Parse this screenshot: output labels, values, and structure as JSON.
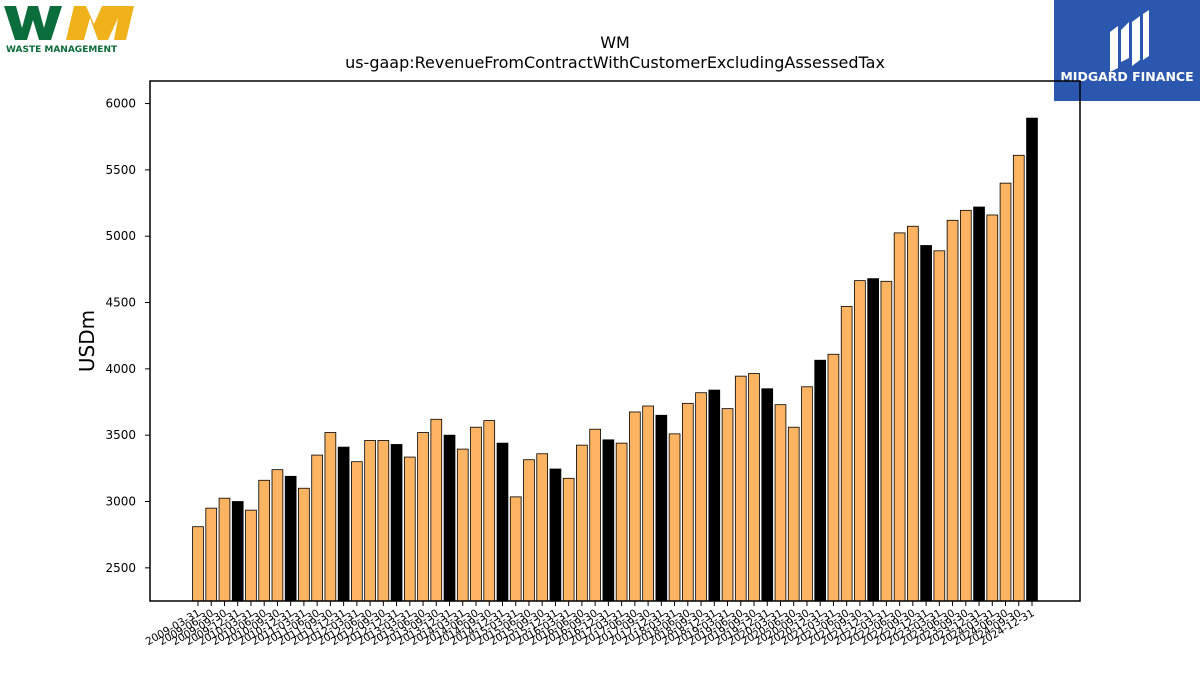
{
  "logos": {
    "left_text": "WASTE MANAGEMENT",
    "right_text": "MIDGARD FINANCE",
    "wm_green": "#0a6d3b",
    "wm_yellow": "#f0b21b",
    "midgard_blue": "#2b58ae"
  },
  "chart_data": {
    "type": "bar",
    "title": "WM",
    "subtitle": "us-gaap:RevenueFromContractWithCustomerExcludingAssessedTax",
    "xlabel": "",
    "ylabel": "USDm",
    "ylim": [
      2250,
      6170
    ],
    "yticks": [
      2500,
      3000,
      3500,
      4000,
      4500,
      5000,
      5500,
      6000
    ],
    "grid": false,
    "legend": "none",
    "colors": {
      "quarter": "#fdb462",
      "q4_highlight": "#000000",
      "edge": "#000000"
    },
    "categories": [
      "2009-03-31",
      "2009-06-30",
      "2009-09-30",
      "2009-12-31",
      "2010-03-31",
      "2010-06-30",
      "2010-09-30",
      "2010-12-31",
      "2011-03-31",
      "2011-06-30",
      "2011-09-30",
      "2011-12-31",
      "2012-03-31",
      "2012-06-30",
      "2012-09-30",
      "2012-12-31",
      "2013-03-31",
      "2013-06-30",
      "2013-09-30",
      "2013-12-31",
      "2014-03-31",
      "2014-06-30",
      "2014-09-30",
      "2014-12-31",
      "2015-03-31",
      "2015-06-30",
      "2015-09-30",
      "2015-12-31",
      "2016-03-31",
      "2016-06-30",
      "2016-09-30",
      "2016-12-31",
      "2017-03-31",
      "2017-06-30",
      "2017-09-30",
      "2017-12-31",
      "2018-03-31",
      "2018-06-30",
      "2018-09-30",
      "2018-12-31",
      "2019-03-31",
      "2019-06-30",
      "2019-09-30",
      "2019-12-31",
      "2020-03-31",
      "2020-06-30",
      "2020-09-30",
      "2020-12-31",
      "2021-03-31",
      "2021-06-30",
      "2021-09-30",
      "2021-12-31",
      "2022-03-31",
      "2022-06-30",
      "2022-09-30",
      "2022-12-31",
      "2023-03-31",
      "2023-06-30",
      "2023-09-30",
      "2023-12-31",
      "2024-03-31",
      "2024-06-30",
      "2024-09-30",
      "2024-12-31"
    ],
    "values": [
      2810,
      2950,
      3025,
      3000,
      2935,
      3160,
      3240,
      3190,
      3100,
      3350,
      3520,
      3410,
      3300,
      3460,
      3460,
      3430,
      3335,
      3520,
      3620,
      3500,
      3395,
      3560,
      3610,
      3440,
      3035,
      3315,
      3360,
      3245,
      3175,
      3425,
      3545,
      3465,
      3440,
      3675,
      3720,
      3650,
      3510,
      3740,
      3820,
      3840,
      3700,
      3945,
      3965,
      3850,
      3730,
      3560,
      3865,
      4065,
      4110,
      4470,
      4665,
      4680,
      4660,
      5025,
      5075,
      4930,
      4890,
      5120,
      5195,
      5220,
      5160,
      5400,
      5610,
      5890
    ],
    "highlight": [
      false,
      false,
      false,
      true,
      false,
      false,
      false,
      true,
      false,
      false,
      false,
      true,
      false,
      false,
      false,
      true,
      false,
      false,
      false,
      true,
      false,
      false,
      false,
      true,
      false,
      false,
      false,
      true,
      false,
      false,
      false,
      true,
      false,
      false,
      false,
      true,
      false,
      false,
      false,
      true,
      false,
      false,
      false,
      true,
      false,
      false,
      false,
      true,
      false,
      false,
      false,
      true,
      false,
      false,
      false,
      true,
      false,
      false,
      false,
      true,
      false,
      false,
      false,
      true
    ]
  }
}
